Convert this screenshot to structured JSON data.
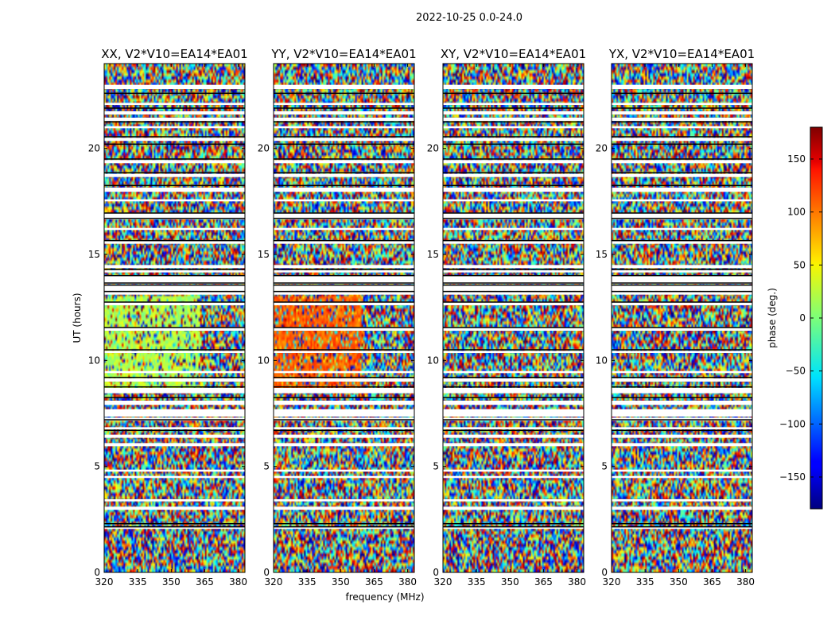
{
  "figure": {
    "suptitle": "2022-10-25 0.0-24.0"
  },
  "chart_data": {
    "type": "heatmap",
    "panels": [
      {
        "title": "XX, V2*V10=EA14*EA01",
        "polarization": "XX"
      },
      {
        "title": "YY, V2*V10=EA14*EA01",
        "polarization": "YY"
      },
      {
        "title": "XY, V2*V10=EA14*EA01",
        "polarization": "XY"
      },
      {
        "title": "YX, V2*V10=EA14*EA01",
        "polarization": "YX"
      }
    ],
    "xlabel": "frequency (MHz)",
    "ylabel": "UT (hours)",
    "xlim": [
      320,
      383
    ],
    "ylim": [
      0,
      24
    ],
    "xticks": [
      320,
      335,
      350,
      365,
      380
    ],
    "yticks": [
      0,
      5,
      10,
      15,
      20
    ],
    "colorbar": {
      "label": "phase (deg.)",
      "range": [
        -180,
        180
      ],
      "ticks": [
        -150,
        -100,
        -50,
        0,
        50,
        100,
        150
      ],
      "colormap": "jet"
    },
    "flagged_bands_hours": [
      [
        2.05,
        2.15
      ],
      [
        2.95,
        3.1
      ],
      [
        3.35,
        3.45
      ],
      [
        4.45,
        4.55
      ],
      [
        4.75,
        4.85
      ],
      [
        5.95,
        6.1
      ],
      [
        6.35,
        6.5
      ],
      [
        6.75,
        6.85
      ],
      [
        7.15,
        7.3
      ],
      [
        7.35,
        7.7
      ],
      [
        7.9,
        8.1
      ],
      [
        8.45,
        8.7
      ],
      [
        9.0,
        9.15
      ],
      [
        9.4,
        9.5
      ],
      [
        10.35,
        10.45
      ],
      [
        11.4,
        11.55
      ],
      [
        12.6,
        12.75
      ],
      [
        13.1,
        13.3
      ],
      [
        13.3,
        13.55
      ],
      [
        13.6,
        14.0
      ],
      [
        14.15,
        14.25
      ],
      [
        14.35,
        14.5
      ],
      [
        15.5,
        15.65
      ],
      [
        16.15,
        16.25
      ],
      [
        16.65,
        16.95
      ],
      [
        17.5,
        17.6
      ],
      [
        17.95,
        18.15
      ],
      [
        18.65,
        18.8
      ],
      [
        19.3,
        19.45
      ],
      [
        20.35,
        20.5
      ],
      [
        20.95,
        21.05
      ],
      [
        21.3,
        21.45
      ],
      [
        21.6,
        21.75
      ],
      [
        22.05,
        22.15
      ],
      [
        22.8,
        23.0
      ]
    ],
    "black_lines_hours": [
      2.15,
      2.3,
      6.7,
      7.2,
      8.25,
      8.75,
      9.2,
      10.5,
      11.55,
      12.75,
      13.25,
      13.55,
      13.65,
      14.0,
      14.3,
      15.65,
      16.7,
      16.95,
      18.25,
      18.85,
      19.5,
      20.2,
      20.55,
      21.25,
      21.9,
      22.6
    ]
  }
}
